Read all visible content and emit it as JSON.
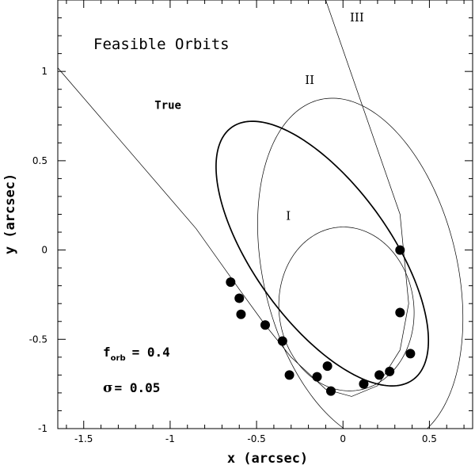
{
  "chart_data": {
    "type": "scatter",
    "title": "Feasible Orbits",
    "xlabel": "x (arcsec)",
    "ylabel": "y (arcsec)",
    "xlim": [
      -1.65,
      0.75
    ],
    "ylim": [
      -1.0,
      1.4
    ],
    "xticks": [
      -1.5,
      -1,
      -0.5,
      0,
      0.5
    ],
    "xtick_labels": [
      "-1.5",
      "-1",
      "-0.5",
      "0",
      "0.5"
    ],
    "yticks": [
      -1,
      -0.5,
      0,
      0.5,
      1
    ],
    "ytick_labels": [
      "-1",
      "-0.5",
      "0",
      "0.5",
      "1"
    ],
    "grid": false,
    "points": [
      {
        "x": -0.65,
        "y": -0.18
      },
      {
        "x": -0.6,
        "y": -0.27
      },
      {
        "x": -0.59,
        "y": -0.36
      },
      {
        "x": -0.45,
        "y": -0.42
      },
      {
        "x": -0.35,
        "y": -0.51
      },
      {
        "x": -0.31,
        "y": -0.7
      },
      {
        "x": -0.15,
        "y": -0.71
      },
      {
        "x": -0.09,
        "y": -0.65
      },
      {
        "x": -0.07,
        "y": -0.79
      },
      {
        "x": 0.12,
        "y": -0.75
      },
      {
        "x": 0.21,
        "y": -0.7
      },
      {
        "x": 0.27,
        "y": -0.68
      },
      {
        "x": 0.39,
        "y": -0.58
      },
      {
        "x": 0.33,
        "y": -0.35
      },
      {
        "x": 0.33,
        "y": 0.0
      }
    ],
    "orbits": [
      {
        "name": "True",
        "type": "ellipse",
        "cx": -0.12,
        "cy": -0.02,
        "a": 0.88,
        "b": 0.39,
        "angle_deg": -53,
        "weight": "bold"
      },
      {
        "name": "II",
        "type": "ellipse",
        "cx": 0.1,
        "cy": -0.12,
        "a": 0.56,
        "b": 0.99,
        "angle_deg": 14,
        "weight": "thin"
      },
      {
        "name": "I",
        "type": "ellipse",
        "cx": 0.02,
        "cy": -0.33,
        "a": 0.39,
        "b": 0.46,
        "angle_deg": 8,
        "weight": "thin"
      },
      {
        "name": "III",
        "type": "line_path",
        "points": [
          [
            -1.65,
            1.02
          ],
          [
            -0.85,
            0.12
          ],
          [
            -0.6,
            -0.22
          ],
          [
            -0.45,
            -0.42
          ],
          [
            -0.3,
            -0.6
          ],
          [
            -0.1,
            -0.78
          ],
          [
            0.05,
            -0.82
          ],
          [
            0.2,
            -0.76
          ],
          [
            0.33,
            -0.56
          ],
          [
            0.38,
            -0.3
          ],
          [
            0.33,
            0.2
          ],
          [
            -0.1,
            1.4
          ]
        ],
        "weight": "thin"
      }
    ],
    "orbit_labels": [
      {
        "text": "True",
        "x": -1.09,
        "y": 0.79
      },
      {
        "text": "II",
        "x": -0.22,
        "y": 0.93
      },
      {
        "text": "I",
        "x": -0.33,
        "y": 0.17
      },
      {
        "text": "III",
        "x": 0.04,
        "y": 1.28
      }
    ],
    "annotations": {
      "forb_text": "f",
      "forb_sub": "orb",
      "forb_value": "=  0.4",
      "sigma_symbol": "σ",
      "sigma_value": "=  0.05"
    }
  }
}
